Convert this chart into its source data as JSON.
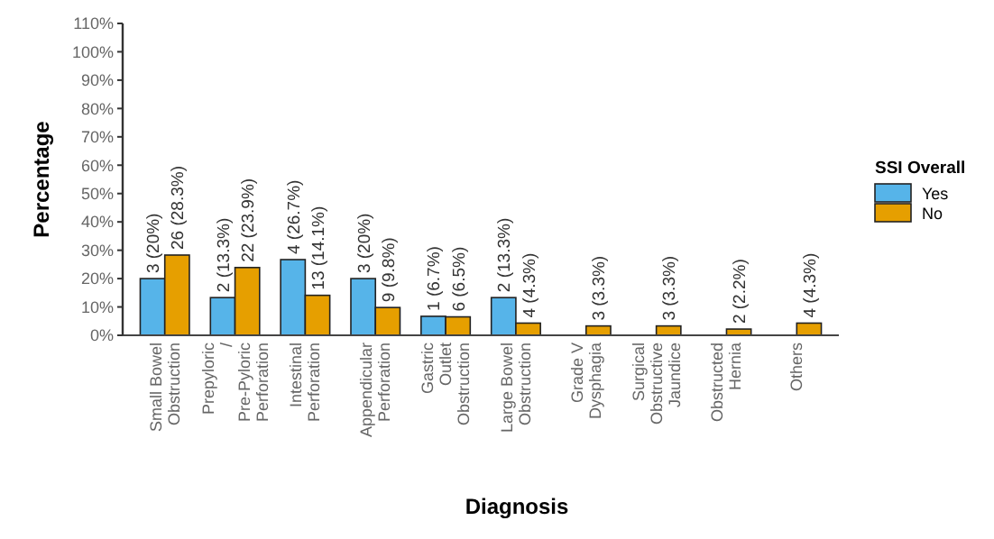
{
  "chart_data": {
    "type": "bar",
    "xlabel": "Diagnosis",
    "ylabel": "Percentage",
    "legend_title": "SSI Overall",
    "legend": "right",
    "categories": [
      "Small Bowel\nObstruction",
      "Prepyloric\n/\nPre-Pyloric\nPerforation",
      "Intestinal\nPerforation",
      "Appendicular\nPerforation",
      "Gastric\nOutlet\nObstruction",
      "Large Bowel\nObstruction",
      "Grade V\nDysphagia",
      "Surgical\nObstructive\nJaundice",
      "Obstructed\nHernia",
      "Others"
    ],
    "series": [
      {
        "name": "Yes",
        "color": "#56b4e9",
        "values": [
          20,
          13.3,
          26.7,
          20,
          6.7,
          13.3,
          null,
          null,
          null,
          null
        ],
        "value_labels": [
          "3 (20%)",
          "2 (13.3%)",
          "4 (26.7%)",
          "3 (20%)",
          "1 (6.7%)",
          "2 (13.3%)",
          null,
          null,
          null,
          null
        ]
      },
      {
        "name": "No",
        "color": "#e69f00",
        "values": [
          28.3,
          23.9,
          14.1,
          9.8,
          6.5,
          4.3,
          3.3,
          3.3,
          2.2,
          4.3
        ],
        "value_labels": [
          "26 (28.3%)",
          "22 (23.9%)",
          "13 (14.1%)",
          "9 (9.8%)",
          "6 (6.5%)",
          "4 (4.3%)",
          "3 (3.3%)",
          "3 (3.3%)",
          "2 (2.2%)",
          "4 (4.3%)"
        ]
      }
    ],
    "ylim": [
      0,
      110
    ],
    "yticks": [
      {
        "value": 0,
        "label": "0%"
      },
      {
        "value": 10,
        "label": "10%"
      },
      {
        "value": 20,
        "label": "20%"
      },
      {
        "value": 30,
        "label": "30%"
      },
      {
        "value": 40,
        "label": "40%"
      },
      {
        "value": 50,
        "label": "50%"
      },
      {
        "value": 60,
        "label": "60%"
      },
      {
        "value": 70,
        "label": "70%"
      },
      {
        "value": 80,
        "label": "80%"
      },
      {
        "value": 90,
        "label": "90%"
      },
      {
        "value": 100,
        "label": "100%"
      },
      {
        "value": 110,
        "label": "110%"
      }
    ],
    "grid": false
  }
}
